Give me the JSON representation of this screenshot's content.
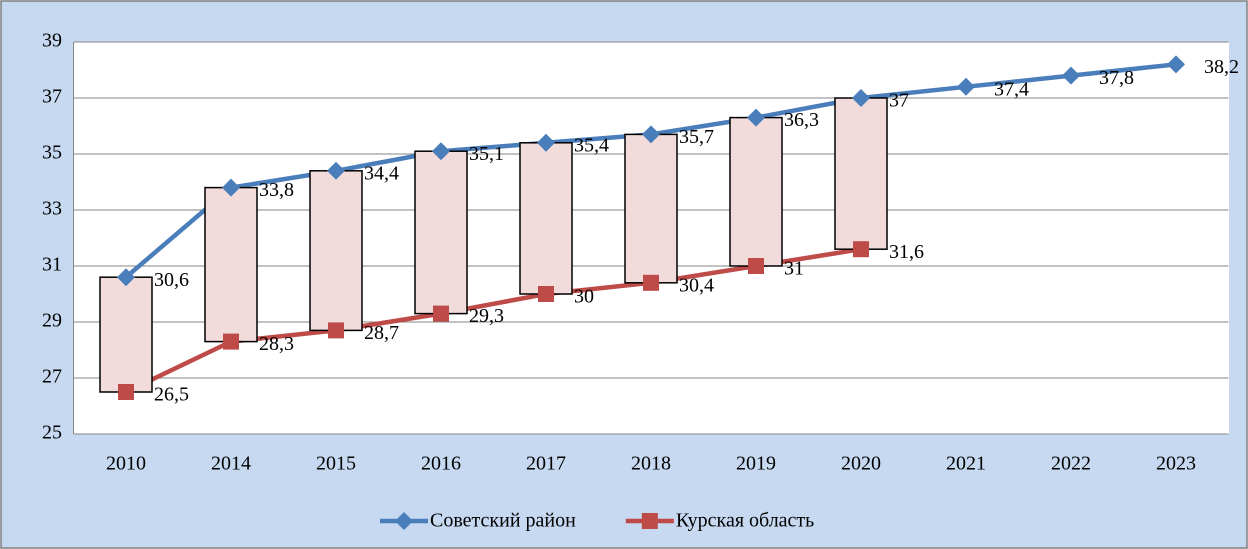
{
  "chart_data": {
    "type": "line",
    "categories": [
      "2010",
      "2014",
      "2015",
      "2016",
      "2017",
      "2018",
      "2019",
      "2020",
      "2021",
      "2022",
      "2023"
    ],
    "series": [
      {
        "name": "Советский район",
        "color": "#4a7ebb",
        "marker": "diamond",
        "values": [
          30.6,
          33.8,
          34.4,
          35.1,
          35.4,
          35.7,
          36.3,
          37,
          37.4,
          37.8,
          38.2
        ],
        "value_labels": [
          "30,6",
          "33,8",
          "34,4",
          "35,1",
          "35,4",
          "35,7",
          "36,3",
          "37",
          "37,4",
          "37,8",
          "38,2"
        ]
      },
      {
        "name": "Курская область",
        "color": "#be4b48",
        "marker": "square",
        "values": [
          26.5,
          28.3,
          28.7,
          29.3,
          30,
          30.4,
          31,
          31.6,
          null,
          null,
          null
        ],
        "value_labels": [
          "26,5",
          "28,3",
          "28,7",
          "29,3",
          "30",
          "30,4",
          "31",
          "31,6",
          null,
          null,
          null
        ]
      }
    ],
    "up_down_bars": true,
    "up_down_color": "#f2dcdb",
    "ylim": [
      25,
      39
    ],
    "yticks": [
      25,
      27,
      29,
      31,
      33,
      35,
      37,
      39
    ],
    "grid": true,
    "legend": "bottom"
  }
}
